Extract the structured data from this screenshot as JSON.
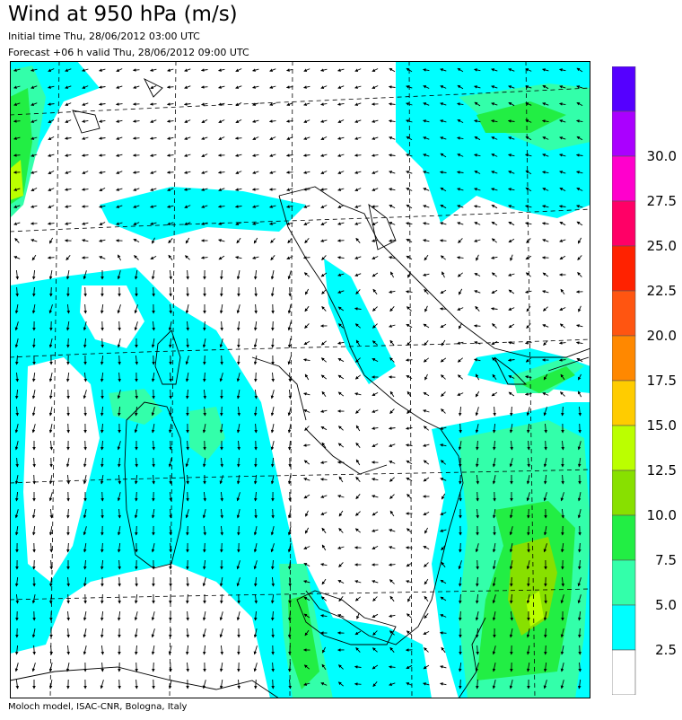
{
  "header": {
    "title": "Wind at 950 hPa (m/s)",
    "initial_time": "Initial time  Thu, 28/06/2012 03:00 UTC",
    "forecast": "Forecast +06 h valid  Thu, 28/06/2012 09:00 UTC"
  },
  "footer": {
    "credit": "Moloch model, ISAC-CNR, Bologna, Italy"
  },
  "legend": {
    "classes": [
      {
        "label": "",
        "color": "#ffffff"
      },
      {
        "label": "2.5",
        "color": "#00ffff"
      },
      {
        "label": "5.0",
        "color": "#33ffaa"
      },
      {
        "label": "7.5",
        "color": "#22ee44"
      },
      {
        "label": "10.0",
        "color": "#88e000"
      },
      {
        "label": "12.5",
        "color": "#bbff00"
      },
      {
        "label": "15.0",
        "color": "#ffcc00"
      },
      {
        "label": "17.5",
        "color": "#ff8800"
      },
      {
        "label": "20.0",
        "color": "#ff5511"
      },
      {
        "label": "22.5",
        "color": "#ff2200"
      },
      {
        "label": "25.0",
        "color": "#ff0066"
      },
      {
        "label": "27.5",
        "color": "#ff00cc"
      },
      {
        "label": "30.0",
        "color": "#aa00ff"
      },
      {
        "label": "",
        "color": "#5500ff"
      }
    ]
  },
  "map": {
    "field_colors": {
      "weak": "#00ffff",
      "moderate": "#33ffaa",
      "strong": "#22ee44",
      "max": "#88e000"
    },
    "arrow_color": "#000000",
    "coast_color": "#000000"
  }
}
